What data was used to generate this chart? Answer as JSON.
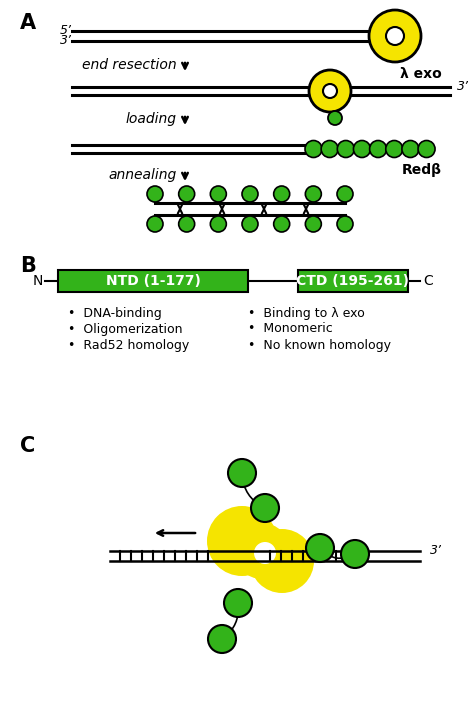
{
  "green": "#33b31a",
  "yellow": "#f5e400",
  "black": "#000000",
  "white": "#ffffff",
  "fig_width": 4.74,
  "fig_height": 7.21,
  "label_A": "A",
  "label_B": "B",
  "label_C": "C",
  "ntd_label": "NTD (1-177)",
  "ctd_label": "CTD (195-261)",
  "ntd_bullets": [
    "DNA-binding",
    "Oligomerization",
    "Rad52 homology"
  ],
  "ctd_bullets": [
    "Binding to λ exo",
    "Monomeric",
    "No known homology"
  ],
  "lambda_exo_label": "λ exo",
  "redbeta_label": "Redβ",
  "prime5": "5’",
  "prime3_top": "3’",
  "prime3_mid": "3’",
  "end_resection": "end resection",
  "loading": "loading",
  "annealing": "annealing",
  "N_label": "N",
  "C_label": "C"
}
